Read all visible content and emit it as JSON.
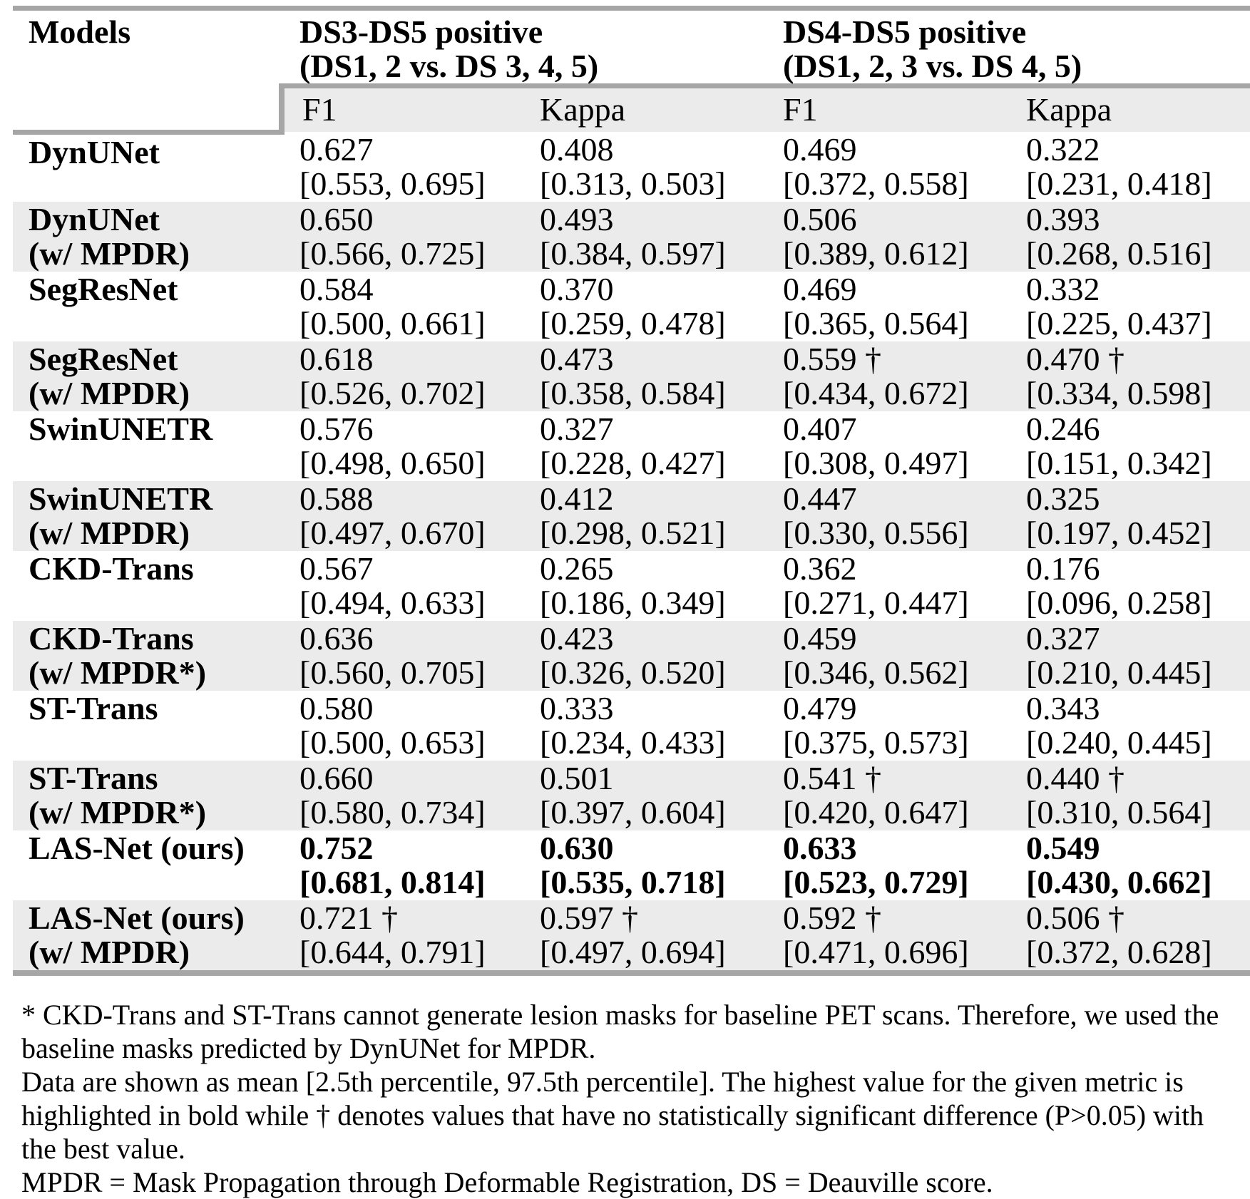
{
  "table": {
    "col1_header": "Models",
    "groups": [
      {
        "title": "DS3-DS5 positive",
        "subtitle": "(DS1, 2 vs. DS 3, 4, 5)"
      },
      {
        "title": "DS4-DS5 positive",
        "subtitle": "(DS1, 2, 3 vs. DS 4, 5)"
      }
    ],
    "metric_headers": [
      "F1",
      "Kappa",
      "F1",
      "Kappa"
    ],
    "rows": [
      {
        "model": [
          "DynUNet"
        ],
        "shaded": false,
        "bold": false,
        "cells": [
          {
            "value": "0.627",
            "ci": "[0.553, 0.695]"
          },
          {
            "value": "0.408",
            "ci": "[0.313, 0.503]"
          },
          {
            "value": "0.469",
            "ci": "[0.372, 0.558]"
          },
          {
            "value": "0.322",
            "ci": "[0.231, 0.418]"
          }
        ]
      },
      {
        "model": [
          "DynUNet",
          "(w/ MPDR)"
        ],
        "shaded": true,
        "bold": false,
        "cells": [
          {
            "value": "0.650",
            "ci": "[0.566, 0.725]"
          },
          {
            "value": "0.493",
            "ci": "[0.384, 0.597]"
          },
          {
            "value": "0.506",
            "ci": "[0.389, 0.612]"
          },
          {
            "value": "0.393",
            "ci": "[0.268, 0.516]"
          }
        ]
      },
      {
        "model": [
          "SegResNet"
        ],
        "shaded": false,
        "bold": false,
        "cells": [
          {
            "value": "0.584",
            "ci": "[0.500, 0.661]"
          },
          {
            "value": "0.370",
            "ci": "[0.259, 0.478]"
          },
          {
            "value": "0.469",
            "ci": "[0.365, 0.564]"
          },
          {
            "value": "0.332",
            "ci": "[0.225, 0.437]"
          }
        ]
      },
      {
        "model": [
          "SegResNet",
          "(w/ MPDR)"
        ],
        "shaded": true,
        "bold": false,
        "cells": [
          {
            "value": "0.618",
            "ci": "[0.526, 0.702]"
          },
          {
            "value": "0.473",
            "ci": "[0.358, 0.584]"
          },
          {
            "value": "0.559 †",
            "ci": "[0.434, 0.672]"
          },
          {
            "value": "0.470 †",
            "ci": "[0.334, 0.598]"
          }
        ]
      },
      {
        "model": [
          "SwinUNETR"
        ],
        "shaded": false,
        "bold": false,
        "cells": [
          {
            "value": "0.576",
            "ci": "[0.498, 0.650]"
          },
          {
            "value": "0.327",
            "ci": "[0.228, 0.427]"
          },
          {
            "value": "0.407",
            "ci": "[0.308, 0.497]"
          },
          {
            "value": "0.246",
            "ci": "[0.151, 0.342]"
          }
        ]
      },
      {
        "model": [
          "SwinUNETR",
          "(w/ MPDR)"
        ],
        "shaded": true,
        "bold": false,
        "cells": [
          {
            "value": "0.588",
            "ci": "[0.497, 0.670]"
          },
          {
            "value": "0.412",
            "ci": "[0.298, 0.521]"
          },
          {
            "value": "0.447",
            "ci": "[0.330, 0.556]"
          },
          {
            "value": "0.325",
            "ci": "[0.197, 0.452]"
          }
        ]
      },
      {
        "model": [
          "CKD-Trans"
        ],
        "shaded": false,
        "bold": false,
        "cells": [
          {
            "value": "0.567",
            "ci": "[0.494, 0.633]"
          },
          {
            "value": "0.265",
            "ci": "[0.186, 0.349]"
          },
          {
            "value": "0.362",
            "ci": "[0.271, 0.447]"
          },
          {
            "value": "0.176",
            "ci": "[0.096, 0.258]"
          }
        ]
      },
      {
        "model": [
          "CKD-Trans",
          "(w/ MPDR*)"
        ],
        "shaded": true,
        "bold": false,
        "cells": [
          {
            "value": "0.636",
            "ci": "[0.560, 0.705]"
          },
          {
            "value": "0.423",
            "ci": "[0.326, 0.520]"
          },
          {
            "value": "0.459",
            "ci": "[0.346, 0.562]"
          },
          {
            "value": "0.327",
            "ci": "[0.210, 0.445]"
          }
        ]
      },
      {
        "model": [
          "ST-Trans"
        ],
        "shaded": false,
        "bold": false,
        "cells": [
          {
            "value": "0.580",
            "ci": "[0.500, 0.653]"
          },
          {
            "value": "0.333",
            "ci": "[0.234, 0.433]"
          },
          {
            "value": "0.479",
            "ci": "[0.375, 0.573]"
          },
          {
            "value": "0.343",
            "ci": "[0.240, 0.445]"
          }
        ]
      },
      {
        "model": [
          "ST-Trans",
          "(w/ MPDR*)"
        ],
        "shaded": true,
        "bold": false,
        "cells": [
          {
            "value": "0.660",
            "ci": "[0.580, 0.734]"
          },
          {
            "value": "0.501",
            "ci": "[0.397, 0.604]"
          },
          {
            "value": "0.541 †",
            "ci": "[0.420, 0.647]"
          },
          {
            "value": "0.440 †",
            "ci": "[0.310, 0.564]"
          }
        ]
      },
      {
        "model": [
          "LAS-Net (ours)"
        ],
        "shaded": false,
        "bold": true,
        "cells": [
          {
            "value": "0.752",
            "ci": "[0.681, 0.814]"
          },
          {
            "value": "0.630",
            "ci": "[0.535, 0.718]"
          },
          {
            "value": "0.633",
            "ci": "[0.523, 0.729]"
          },
          {
            "value": "0.549",
            "ci": "[0.430, 0.662]"
          }
        ]
      },
      {
        "model": [
          "LAS-Net (ours)",
          "(w/ MPDR)"
        ],
        "shaded": true,
        "bold": false,
        "cells": [
          {
            "value": "0.721 †",
            "ci": "[0.644, 0.791]"
          },
          {
            "value": "0.597 †",
            "ci": "[0.497, 0.694]"
          },
          {
            "value": "0.592 †",
            "ci": "[0.471, 0.696]"
          },
          {
            "value": "0.506 †",
            "ci": "[0.372, 0.628]"
          }
        ]
      }
    ]
  },
  "footnotes": [
    "* CKD-Trans and ST-Trans cannot generate lesion masks for baseline PET scans. Therefore, we used the baseline masks predicted by DynUNet for MPDR.",
    "Data are shown as mean [2.5th percentile, 97.5th percentile]. The highest value for the given metric is highlighted in bold while † denotes values that have no statistically significant difference (P>0.05) with the best value.",
    "MPDR = Mask Propagation through Deformable Registration, DS = Deauville score."
  ],
  "colors": {
    "row_shading": "#ebebeb",
    "table_border": "#a6a6a6",
    "text": "#000000"
  }
}
